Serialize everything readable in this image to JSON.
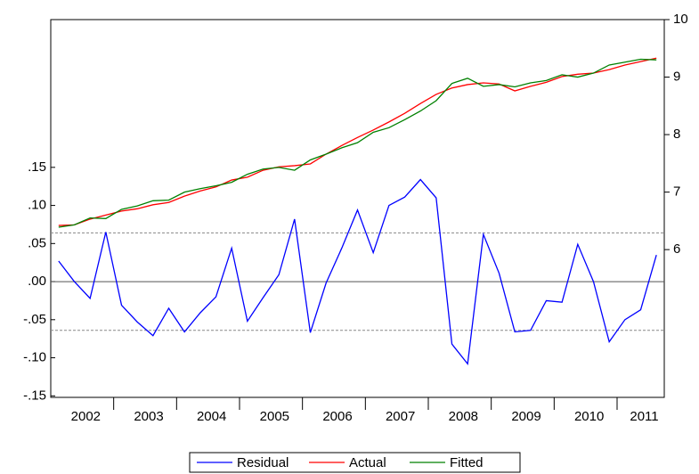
{
  "chart_data": {
    "type": "line",
    "categories": [
      "2002",
      null,
      null,
      null,
      "2003",
      null,
      null,
      null,
      "2004",
      null,
      null,
      null,
      "2005",
      null,
      null,
      null,
      "2006",
      null,
      null,
      null,
      "2007",
      null,
      null,
      null,
      "2008",
      null,
      null,
      null,
      "2009",
      null,
      null,
      null,
      "2010",
      null,
      null,
      null,
      "2011",
      null,
      null
    ],
    "series": [
      {
        "name": "Residual",
        "color": "#0000ff",
        "axis": "y",
        "values": [
          0.027,
          0.0,
          -0.022,
          0.065,
          -0.031,
          -0.053,
          -0.071,
          -0.035,
          -0.066,
          -0.041,
          -0.02,
          0.044,
          -0.052,
          -0.021,
          0.009,
          0.082,
          -0.067,
          -0.002,
          0.044,
          0.094,
          0.038,
          0.1,
          0.111,
          0.134,
          0.11,
          -0.082,
          -0.108,
          0.062,
          0.011,
          -0.066,
          -0.064,
          -0.025,
          -0.027,
          0.049,
          0.0,
          -0.079,
          -0.05,
          -0.037,
          0.035
        ]
      },
      {
        "name": "Actual",
        "color": "#ff0000",
        "axis": "y2",
        "values": [
          6.42,
          6.43,
          6.53,
          6.6,
          6.67,
          6.71,
          6.78,
          6.82,
          6.93,
          7.02,
          7.09,
          7.21,
          7.26,
          7.38,
          7.44,
          7.46,
          7.49,
          7.66,
          7.81,
          7.95,
          8.08,
          8.22,
          8.37,
          8.54,
          8.7,
          8.81,
          8.87,
          8.9,
          8.88,
          8.76,
          8.84,
          8.91,
          9.01,
          9.05,
          9.07,
          9.13,
          9.21,
          9.27,
          9.33
        ]
      },
      {
        "name": "Fitted",
        "color": "#008000",
        "axis": "y2",
        "values": [
          6.39,
          6.43,
          6.55,
          6.54,
          6.7,
          6.76,
          6.85,
          6.86,
          7.0,
          7.06,
          7.11,
          7.17,
          7.31,
          7.4,
          7.43,
          7.38,
          7.56,
          7.66,
          7.77,
          7.86,
          8.04,
          8.12,
          8.26,
          8.41,
          8.59,
          8.89,
          8.98,
          8.84,
          8.87,
          8.83,
          8.9,
          8.94,
          9.04,
          9.0,
          9.07,
          9.21,
          9.26,
          9.31,
          9.3
        ]
      }
    ],
    "ylim": [
      -0.152,
      0.344
    ],
    "yticks": [
      {
        "value": -0.15,
        "label": "-.15"
      },
      {
        "value": -0.1,
        "label": "-.10"
      },
      {
        "value": -0.05,
        "label": "-.05"
      },
      {
        "value": 0,
        "label": ".00"
      },
      {
        "value": 0.05,
        "label": ".05"
      },
      {
        "value": 0.1,
        "label": ".10"
      },
      {
        "value": 0.15,
        "label": ".15"
      }
    ],
    "y2lim": [
      3.43,
      10
    ],
    "y2ticks": [
      6,
      7,
      8,
      9,
      10
    ],
    "reference_lines": [
      {
        "value": 0,
        "style": "solid"
      },
      {
        "value": 0.064,
        "style": "dashed"
      },
      {
        "value": -0.064,
        "style": "dashed"
      }
    ],
    "legend": "bottom"
  }
}
